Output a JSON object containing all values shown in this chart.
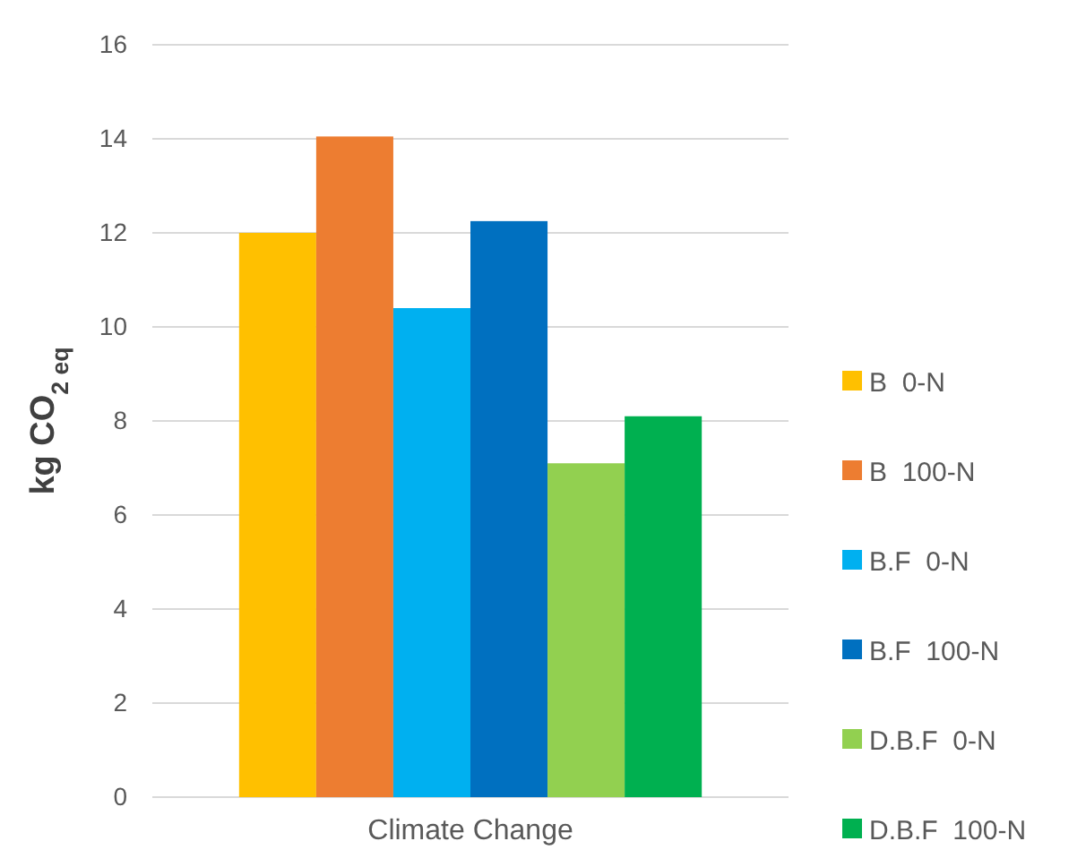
{
  "chart_data": {
    "type": "bar",
    "ylabel": "kg CO$_{2 eq}$",
    "categories": [
      "Climate Change"
    ],
    "series": [
      {
        "name": "B  0-N",
        "color": "#ffc000",
        "values": [
          12.0
        ]
      },
      {
        "name": "B  100-N",
        "color": "#ed7d31",
        "values": [
          14.05
        ]
      },
      {
        "name": "B.F  0-N",
        "color": "#00b0f0",
        "values": [
          10.4
        ]
      },
      {
        "name": "B.F  100-N",
        "color": "#0070c0",
        "values": [
          12.25
        ]
      },
      {
        "name": "D.B.F  0-N",
        "color": "#92d050",
        "values": [
          7.1
        ]
      },
      {
        "name": "D.B.F  100-N",
        "color": "#00b050",
        "values": [
          8.1
        ]
      }
    ],
    "ylim": [
      0,
      16
    ],
    "yticks": [
      0,
      2,
      4,
      6,
      8,
      10,
      12,
      14,
      16
    ],
    "grid": "y",
    "legend": "right"
  }
}
